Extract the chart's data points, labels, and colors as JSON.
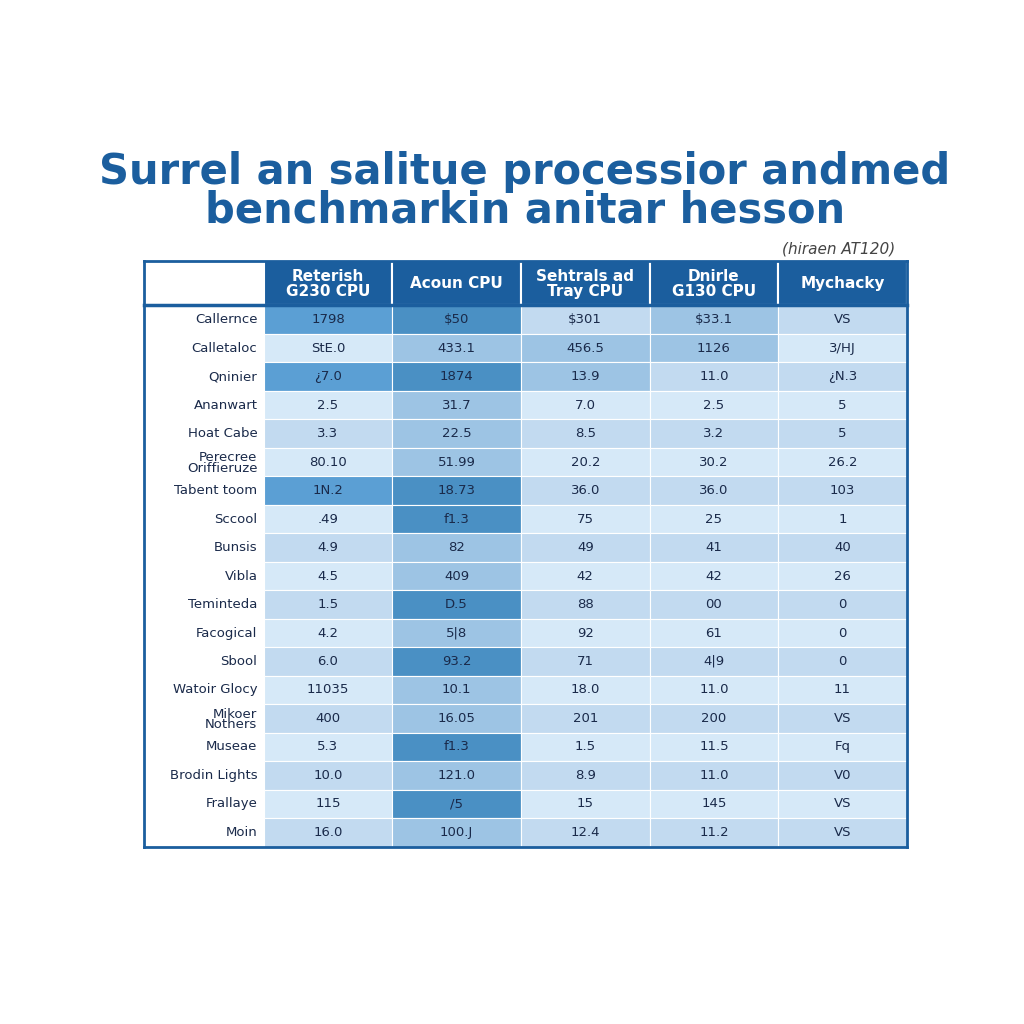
{
  "title_line1": "Surrel an salitue processior andmed",
  "title_line2": "benchmarkin anitar hesson",
  "subtitle": "(hiraen AT120)",
  "col_headers": [
    "Reterish\nG230 CPU",
    "Acoun CPU",
    "Sehtrals ad\nTray CPU",
    "Dnirle\nG130 CPU",
    "Mychacky"
  ],
  "row_labels": [
    "Callernce",
    "Calletaloc",
    "Qninier",
    "Ananwart",
    "Hoat Cabe",
    "Perecree\nOriffieruze",
    "Tabent toom",
    "Sccool",
    "Bunsis",
    "Vibla",
    "Teminteda",
    "Facogical",
    "Sbool",
    "Watoir Glocy",
    "Mikoer\nNothers",
    "Museae",
    "Brodin Lights",
    "Frallaye",
    "Moin"
  ],
  "table_data": [
    [
      "1798",
      "$50",
      "$301",
      "$33.1",
      "VS"
    ],
    [
      "StE.0",
      "433.1",
      "456.5",
      "1126",
      "3/HJ"
    ],
    [
      "¿7.0",
      "1874",
      "13.9",
      "11.0",
      "¿N.3"
    ],
    [
      "2.5",
      "31.7",
      "7.0",
      "2.5",
      "5"
    ],
    [
      "3.3",
      "22.5",
      "8.5",
      "3.2",
      "5"
    ],
    [
      "80.10",
      "51.99",
      "20.2",
      "30.2",
      "26.2"
    ],
    [
      "1N.2",
      "18.73",
      "36.0",
      "36.0",
      "103"
    ],
    [
      ".49",
      "f1.3",
      "75",
      "25",
      "1"
    ],
    [
      "4.9",
      "82",
      "49",
      "41",
      "40"
    ],
    [
      "4.5",
      "409",
      "42",
      "42",
      "26"
    ],
    [
      "1.5",
      "D.5",
      "88",
      "00",
      "0"
    ],
    [
      "4.2",
      "5|8",
      "92",
      "61",
      "0"
    ],
    [
      "6.0",
      "93.2",
      "71",
      "4|9",
      "0"
    ],
    [
      "11035",
      "10.1",
      "18.0",
      "11.0",
      "11"
    ],
    [
      "400",
      "16.05",
      "201",
      "200",
      "VS"
    ],
    [
      "5.3",
      "f1.3",
      "1.5",
      "11.5",
      "Fq"
    ],
    [
      "10.0",
      "121.0",
      "8.9",
      "11.0",
      "V0"
    ],
    [
      "115",
      "/5",
      "15",
      "145",
      "VS"
    ],
    [
      "16.0",
      "100.J",
      "12.4",
      "11.2",
      "VS"
    ]
  ],
  "header_dark": "#1b5e9e",
  "header_medium": "#2b7ec1",
  "col_row_colors": {
    "0": {
      "dark_rows": [
        0,
        2,
        6,
        7,
        10,
        12,
        15,
        17
      ],
      "dark": "#3b8fd4",
      "light": "#8abce0"
    },
    "1": {
      "dark_rows": [
        1,
        2
      ],
      "dark": "#8abce0",
      "light": "#c5dff2"
    },
    "2": {
      "dark_rows": [
        0,
        3,
        5,
        8,
        11,
        12,
        13,
        16,
        18
      ],
      "dark": "#8abce0",
      "light": "#c5dff2"
    },
    "3": {
      "dark_rows": [],
      "dark": "#8abce0",
      "light": "#c5dff2"
    }
  },
  "title_color": "#1b5e9e",
  "header_text_color": "#ffffff",
  "cell_text_color": "#1a2a4a",
  "row_label_color": "#1a2a4a",
  "bg_color": "#ffffff"
}
